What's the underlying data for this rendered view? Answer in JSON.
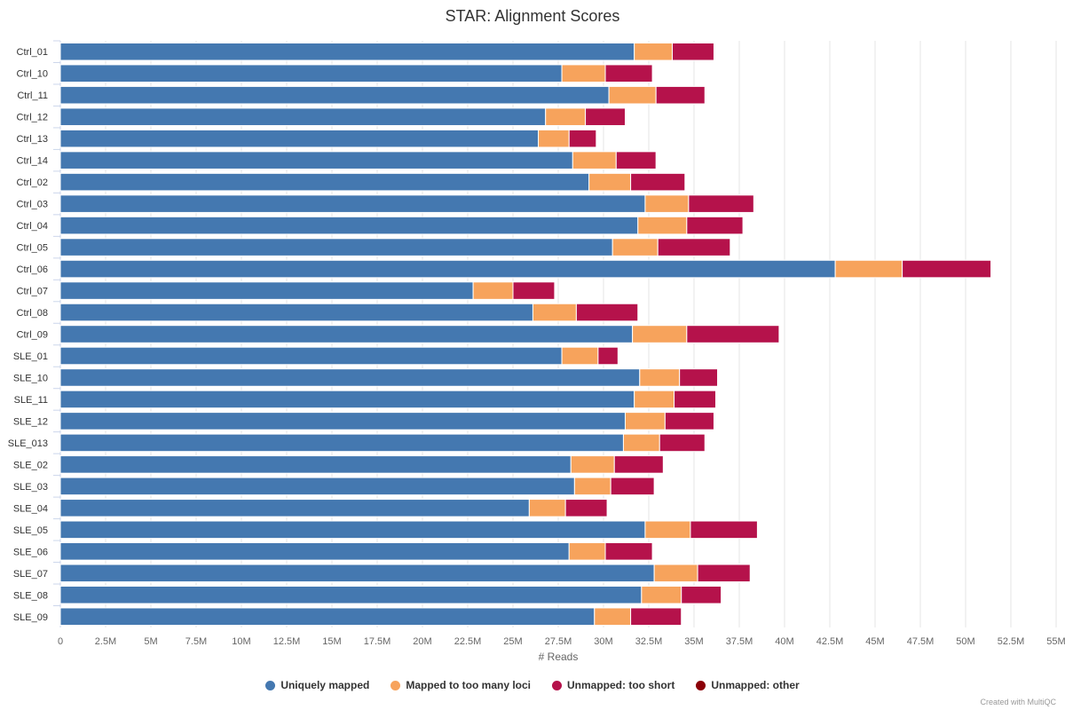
{
  "chart_data": {
    "type": "bar",
    "orientation": "horizontal",
    "stacked": true,
    "title": "STAR: Alignment Scores",
    "xlabel": "# Reads",
    "ylabel": "",
    "xlim": [
      0,
      55000000
    ],
    "grid": true,
    "legend_position": "bottom",
    "xticks": [
      "0",
      "2.5M",
      "5M",
      "7.5M",
      "10M",
      "12.5M",
      "15M",
      "17.5M",
      "20M",
      "22.5M",
      "25M",
      "27.5M",
      "30M",
      "32.5M",
      "35M",
      "37.5M",
      "40M",
      "42.5M",
      "45M",
      "47.5M",
      "50M",
      "52.5M",
      "55M"
    ],
    "categories": [
      "Ctrl_01",
      "Ctrl_10",
      "Ctrl_11",
      "Ctrl_12",
      "Ctrl_13",
      "Ctrl_14",
      "Ctrl_02",
      "Ctrl_03",
      "Ctrl_04",
      "Ctrl_05",
      "Ctrl_06",
      "Ctrl_07",
      "Ctrl_08",
      "Ctrl_09",
      "SLE_01",
      "SLE_10",
      "SLE_11",
      "SLE_12",
      "SLE_013",
      "SLE_02",
      "SLE_03",
      "SLE_04",
      "SLE_05",
      "SLE_06",
      "SLE_07",
      "SLE_08",
      "SLE_09"
    ],
    "series": [
      {
        "name": "Uniquely mapped",
        "color": "#4478b0",
        "values": [
          31700000,
          27700000,
          30300000,
          26800000,
          26400000,
          28300000,
          29200000,
          32300000,
          31900000,
          30500000,
          42800000,
          22800000,
          26100000,
          31600000,
          27700000,
          32000000,
          31700000,
          31200000,
          31100000,
          28200000,
          28400000,
          25900000,
          32300000,
          28100000,
          32800000,
          32100000,
          29500000
        ]
      },
      {
        "name": "Mapped to too many loci",
        "color": "#f7a35c",
        "values": [
          2100000,
          2400000,
          2600000,
          2200000,
          1700000,
          2400000,
          2300000,
          2400000,
          2700000,
          2500000,
          3700000,
          2200000,
          2400000,
          3000000,
          2000000,
          2200000,
          2200000,
          2200000,
          2000000,
          2400000,
          2000000,
          2000000,
          2500000,
          2000000,
          2400000,
          2200000,
          2000000
        ]
      },
      {
        "name": "Unmapped: too short",
        "color": "#b5124b",
        "values": [
          2300000,
          2600000,
          2700000,
          2200000,
          1500000,
          2200000,
          3000000,
          3600000,
          3100000,
          4000000,
          4900000,
          2300000,
          3400000,
          5100000,
          1100000,
          2100000,
          2300000,
          2700000,
          2500000,
          2700000,
          2400000,
          2300000,
          3700000,
          2600000,
          2900000,
          2200000,
          2800000
        ]
      },
      {
        "name": "Unmapped: other",
        "color": "#8b0008",
        "values": [
          0,
          0,
          0,
          0,
          0,
          0,
          0,
          0,
          0,
          0,
          0,
          0,
          0,
          0,
          0,
          0,
          0,
          0,
          0,
          0,
          0,
          0,
          0,
          0,
          0,
          0,
          0
        ]
      }
    ]
  },
  "footer": {
    "credit": "Created with MultiQC"
  }
}
